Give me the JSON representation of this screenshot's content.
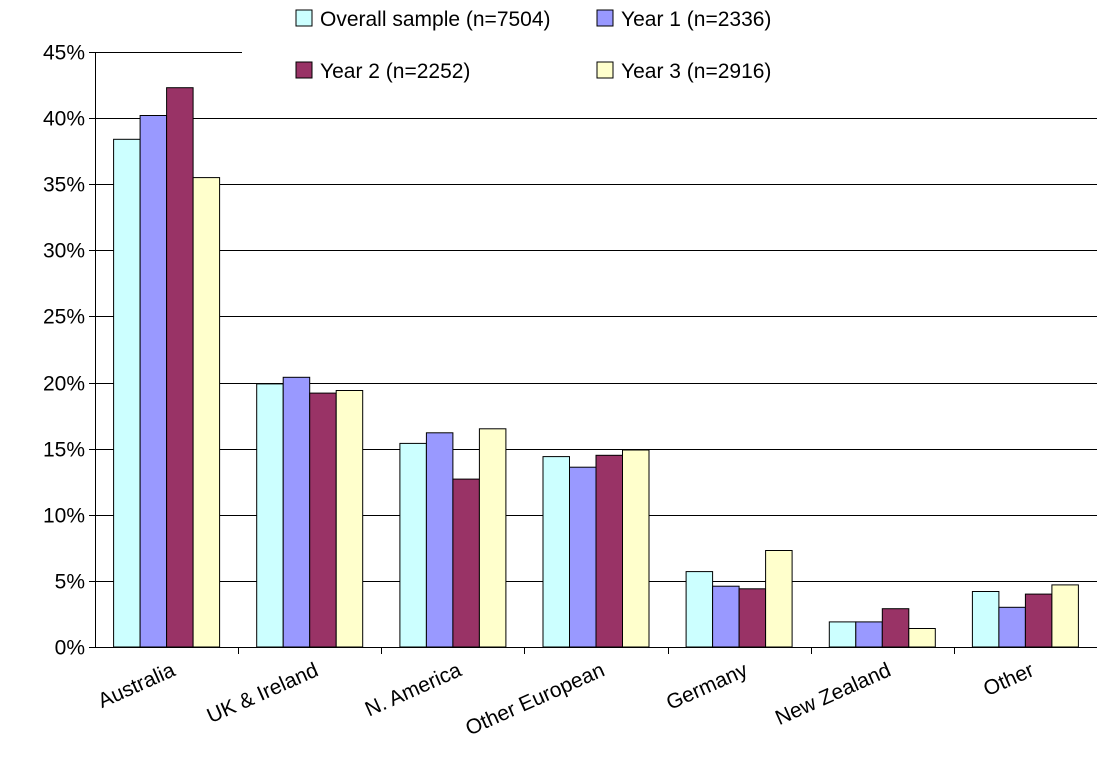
{
  "chart_data": {
    "type": "bar",
    "title": "",
    "xlabel": "",
    "ylabel": "",
    "ylim": [
      0,
      45
    ],
    "y_tick_step": 5,
    "y_tick_format": "percent",
    "grid": true,
    "legend_position": "top-right",
    "categories": [
      "Australia",
      "UK & Ireland",
      "N. America",
      "Other European",
      "Germany",
      "New Zealand",
      "Other"
    ],
    "series": [
      {
        "name": "Overall sample (n=7504)",
        "color": "#CCFFFF",
        "values": [
          38.4,
          19.9,
          15.4,
          14.4,
          5.7,
          1.9,
          4.2
        ]
      },
      {
        "name": "Year 1 (n=2336)",
        "color": "#9999FF",
        "values": [
          40.2,
          20.4,
          16.2,
          13.6,
          4.6,
          1.9,
          3.0
        ]
      },
      {
        "name": "Year 2 (n=2252)",
        "color": "#993366",
        "values": [
          42.3,
          19.2,
          12.7,
          14.5,
          4.4,
          2.9,
          4.0
        ]
      },
      {
        "name": "Year 3 (n=2916)",
        "color": "#FFFFCC",
        "values": [
          35.5,
          19.4,
          16.5,
          14.9,
          7.3,
          1.4,
          4.7
        ]
      }
    ]
  }
}
